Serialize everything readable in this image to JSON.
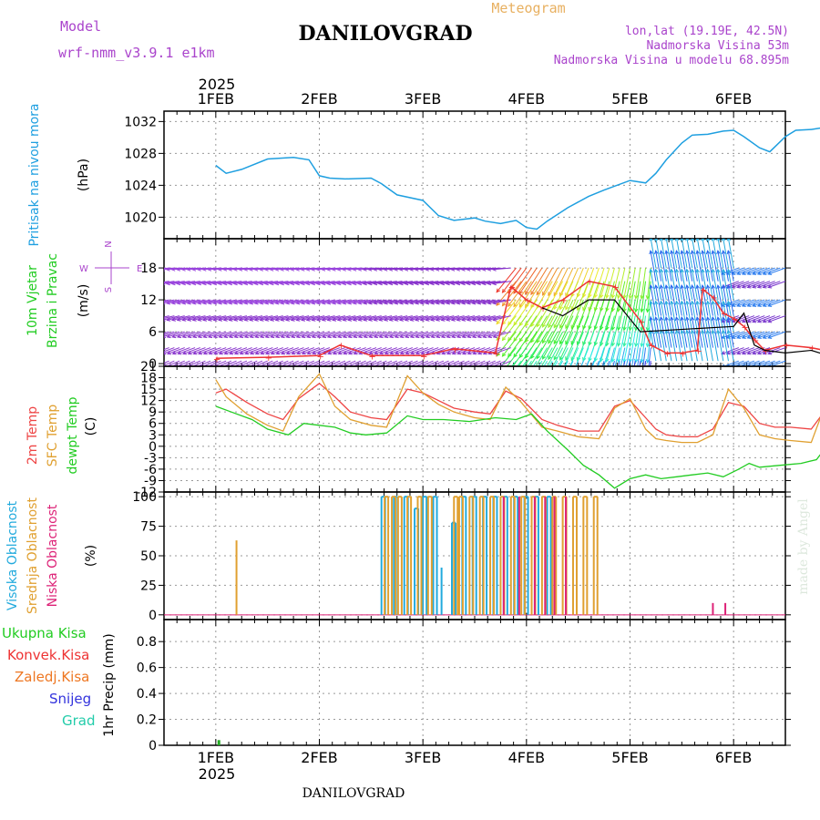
{
  "header": {
    "meteogram_label": "Meteogram",
    "model_label": "Model",
    "model_name": "wrf-nmm_v3.9.1  e1km",
    "station": "DANILOVGRAD",
    "lonlat": "lon,lat (19.19E, 42.5N)",
    "elevation": "Nadmorska Visina 53m",
    "model_elevation": "Nadmorska Visina u modelu 68.895m",
    "footer_station": "DANILOVGRAD",
    "watermark": "made by Angel"
  },
  "colors": {
    "pressure": "#1e9fe0",
    "wind_speed_max": "#ee3333",
    "wind_speed_mean": "#000000",
    "temp_2m": "#ee4444",
    "temp_sfc": "#e0a030",
    "dewpoint": "#22cc22",
    "high_cloud": "#22aadd",
    "mid_cloud": "#e0a030",
    "low_cloud": "#dd2277",
    "total_precip": "#22aa22",
    "grid": "#999999",
    "purple_text": "#aa44cc",
    "orange_text": "#e8b060"
  },
  "chart_data": [
    {
      "type": "line",
      "panel": "pressure",
      "ylabel": "Pritisak na nivou mora",
      "unit": "(hPa)",
      "yticks": [
        1020,
        1024,
        1028,
        1032
      ],
      "ylim": [
        1017.3,
        1033.3
      ],
      "x_days": [
        0.0,
        0.1,
        0.25,
        0.5,
        0.75,
        0.9,
        1.0,
        1.1,
        1.25,
        1.5,
        1.6,
        1.75,
        2.0,
        2.15,
        2.3,
        2.5,
        2.6,
        2.75,
        2.9,
        3.0,
        3.1,
        3.2,
        3.4,
        3.6,
        3.75,
        4.0,
        4.15,
        4.25,
        4.35,
        4.5,
        4.6,
        4.75,
        4.9,
        5.0,
        5.1,
        5.25,
        5.35,
        5.5,
        5.6,
        5.75,
        5.9,
        6.0
      ],
      "y": [
        1026.5,
        1025.5,
        1026.0,
        1027.3,
        1027.5,
        1027.2,
        1025.2,
        1024.9,
        1024.8,
        1024.9,
        1024.2,
        1022.8,
        1022.1,
        1020.2,
        1019.6,
        1019.9,
        1019.5,
        1019.2,
        1019.6,
        1018.7,
        1018.5,
        1019.5,
        1021.2,
        1022.6,
        1023.4,
        1024.6,
        1024.3,
        1025.5,
        1027.2,
        1029.3,
        1030.3,
        1030.4,
        1030.8,
        1030.9,
        1030.1,
        1028.7,
        1028.2,
        1030.1,
        1030.9,
        1031.0,
        1031.3,
        1031.7
      ]
    },
    {
      "type": "line",
      "panel": "wind",
      "ylabel": "10m Vjetar Brzina i Pravac",
      "unit": "(m/s)",
      "yticks": [
        0,
        6,
        12,
        18
      ],
      "ylim": [
        -0.5,
        23.5
      ],
      "compass": {
        "n": "N",
        "e": "E",
        "w": "W",
        "s": "S"
      },
      "series": [
        {
          "x_days": [
            0.0,
            0.5,
            1.0,
            1.2,
            1.5,
            2.0,
            2.3,
            2.7,
            2.85,
            3.0,
            3.15,
            3.35,
            3.6,
            3.85,
            4.1,
            4.2,
            4.35,
            4.5,
            4.65,
            4.7,
            4.8,
            4.9,
            5.0,
            5.1,
            5.2,
            5.3,
            5.5,
            5.75,
            6.0
          ],
          "y": [
            1.0,
            1.2,
            1.5,
            3.5,
            1.5,
            1.5,
            2.8,
            2.0,
            14.5,
            12.0,
            10.5,
            12.0,
            15.5,
            14.5,
            8.0,
            3.5,
            2.0,
            2.0,
            2.5,
            14.0,
            12.5,
            9.5,
            8.5,
            7.0,
            4.5,
            2.5,
            3.5,
            3.0,
            2.0
          ]
        },
        {
          "x_days": [
            3.15,
            3.35,
            3.6,
            3.85,
            4.1,
            5.0,
            5.1,
            5.2,
            5.3,
            5.5,
            5.75,
            6.0
          ],
          "y": [
            10.5,
            9.0,
            12.0,
            12.0,
            6.0,
            7.0,
            9.5,
            3.5,
            2.5,
            2.0,
            2.5,
            1.0
          ]
        }
      ],
      "barb_rows": [
        18,
        15.5,
        12,
        9,
        6,
        3,
        0.5
      ]
    },
    {
      "type": "line",
      "panel": "temperature",
      "ylabel": "2m Temp SFC Temp dewpt Temp",
      "unit": "(C)",
      "yticks": [
        -12,
        -9,
        -6,
        -3,
        0,
        3,
        6,
        9,
        12,
        15,
        18,
        21
      ],
      "ylim": [
        -12,
        21
      ],
      "series": [
        {
          "name": "2m Temp",
          "x_days": [
            0.0,
            0.1,
            0.3,
            0.5,
            0.65,
            0.8,
            1.0,
            1.15,
            1.3,
            1.5,
            1.65,
            1.85,
            2.0,
            2.15,
            2.3,
            2.5,
            2.65,
            2.8,
            2.95,
            3.15,
            3.3,
            3.5,
            3.7,
            3.85,
            4.0,
            4.15,
            4.25,
            4.35,
            4.5,
            4.65,
            4.8,
            4.95,
            5.1,
            5.25,
            5.4,
            5.55,
            5.75,
            5.9,
            6.0
          ],
          "y": [
            14.0,
            15.0,
            11.5,
            8.5,
            7.0,
            12.5,
            16.5,
            13.0,
            9.0,
            7.5,
            7.0,
            15.0,
            14.0,
            12.0,
            10.0,
            9.0,
            8.5,
            14.5,
            12.5,
            7.0,
            5.5,
            4.0,
            4.0,
            10.5,
            12.0,
            7.5,
            4.5,
            3.0,
            2.5,
            2.5,
            4.5,
            11.5,
            10.5,
            6.0,
            5.0,
            5.0,
            4.5,
            10.0,
            13.0
          ]
        },
        {
          "name": "SFC Temp",
          "x_days": [
            0.0,
            0.1,
            0.3,
            0.5,
            0.65,
            0.8,
            1.0,
            1.15,
            1.3,
            1.5,
            1.65,
            1.85,
            2.0,
            2.15,
            2.3,
            2.5,
            2.65,
            2.8,
            2.95,
            3.15,
            3.3,
            3.5,
            3.7,
            3.85,
            4.0,
            4.15,
            4.25,
            4.35,
            4.5,
            4.65,
            4.8,
            4.95,
            5.1,
            5.25,
            5.4,
            5.55,
            5.75,
            5.9,
            6.0
          ],
          "y": [
            17.5,
            13.0,
            8.5,
            5.5,
            4.0,
            13.0,
            19.0,
            10.5,
            7.0,
            5.5,
            5.0,
            18.5,
            14.0,
            11.0,
            9.0,
            7.5,
            7.0,
            15.5,
            11.5,
            5.0,
            4.0,
            2.5,
            2.0,
            10.0,
            12.5,
            4.5,
            2.0,
            1.5,
            1.0,
            1.0,
            3.0,
            15.0,
            10.0,
            3.0,
            2.0,
            1.5,
            1.0,
            12.0,
            16.5
          ]
        },
        {
          "name": "dewpt Temp",
          "x_days": [
            0.0,
            0.15,
            0.35,
            0.5,
            0.7,
            0.85,
            1.0,
            1.15,
            1.3,
            1.45,
            1.65,
            1.85,
            2.0,
            2.2,
            2.45,
            2.7,
            2.9,
            3.05,
            3.2,
            3.4,
            3.55,
            3.7,
            3.85,
            4.0,
            4.15,
            4.3,
            4.45,
            4.6,
            4.75,
            4.9,
            5.05,
            5.15,
            5.25,
            5.45,
            5.65,
            5.8,
            5.9,
            6.0
          ],
          "y": [
            10.5,
            9.0,
            7.0,
            4.5,
            3.0,
            6.0,
            5.5,
            5.0,
            3.5,
            3.0,
            3.5,
            8.0,
            7.0,
            7.0,
            6.5,
            7.5,
            7.0,
            8.5,
            4.0,
            -1.0,
            -5.0,
            -7.5,
            -11.0,
            -8.5,
            -7.5,
            -8.5,
            -8.0,
            -7.5,
            -7.0,
            -8.0,
            -6.0,
            -4.5,
            -5.5,
            -5.0,
            -4.5,
            -3.5,
            0.0,
            3.0
          ]
        }
      ]
    },
    {
      "type": "bar",
      "panel": "clouds",
      "ylabel": "Visoka Oblacnost Srednja Oblacnost Niska Oblacnost",
      "unit": "(%)",
      "yticks": [
        0,
        25,
        50,
        75,
        100
      ],
      "ylim": [
        -4,
        104
      ],
      "series": [
        {
          "name": "Visoka Oblacnost",
          "x_days": [
            1.6,
            1.72,
            1.82,
            1.92,
            2.0,
            2.1,
            2.18,
            2.28,
            2.38,
            2.48,
            2.58,
            2.68,
            2.78,
            2.88,
            2.98,
            3.08,
            3.2
          ],
          "values": [
            100,
            100,
            100,
            90,
            100,
            100,
            40,
            78,
            100,
            100,
            100,
            100,
            100,
            100,
            100,
            100,
            100
          ]
        },
        {
          "name": "Srednja Oblacnost",
          "x_days": [
            0.2,
            1.63,
            1.7,
            1.76,
            1.85,
            1.95,
            2.05,
            2.3,
            2.35,
            2.45,
            2.55,
            2.65,
            2.75,
            2.85,
            2.95,
            3.05,
            3.15,
            3.25,
            3.35,
            3.45,
            3.55,
            3.65
          ],
          "values": [
            63,
            100,
            100,
            100,
            100,
            100,
            100,
            100,
            100,
            100,
            100,
            100,
            100,
            100,
            100,
            100,
            100,
            100,
            100,
            100,
            100,
            100
          ]
        },
        {
          "name": "Niska Oblacnost",
          "x_days": [
            2.78,
            2.93,
            3.08,
            3.18,
            3.27,
            3.38,
            4.8,
            4.92
          ],
          "values": [
            100,
            100,
            100,
            100,
            100,
            100,
            10,
            10
          ]
        }
      ]
    },
    {
      "type": "bar",
      "panel": "precipitation",
      "ylabel": "1hr Precip (mm)",
      "yticks": [
        0,
        0.2,
        0.4,
        0.6,
        0.8
      ],
      "ylim": [
        0,
        0.97
      ],
      "legend": [
        "Ukupna Kisa",
        "Konvek.Kisa",
        "Zaledj.Kisa",
        "Snijeg",
        "Grad"
      ],
      "legend_colors": [
        "#22cc22",
        "#ee3333",
        "#ee7722",
        "#3333dd",
        "#22ccaa"
      ],
      "series": [
        {
          "name": "Ukupna Kisa",
          "x_days": [
            0.03
          ],
          "values": [
            0.04
          ]
        }
      ]
    }
  ],
  "time_axis": {
    "year": "2025",
    "day_labels": [
      "1FEB",
      "2FEB",
      "3FEB",
      "4FEB",
      "5FEB",
      "6FEB"
    ],
    "range_days": [
      -0.5,
      5.5
    ]
  }
}
